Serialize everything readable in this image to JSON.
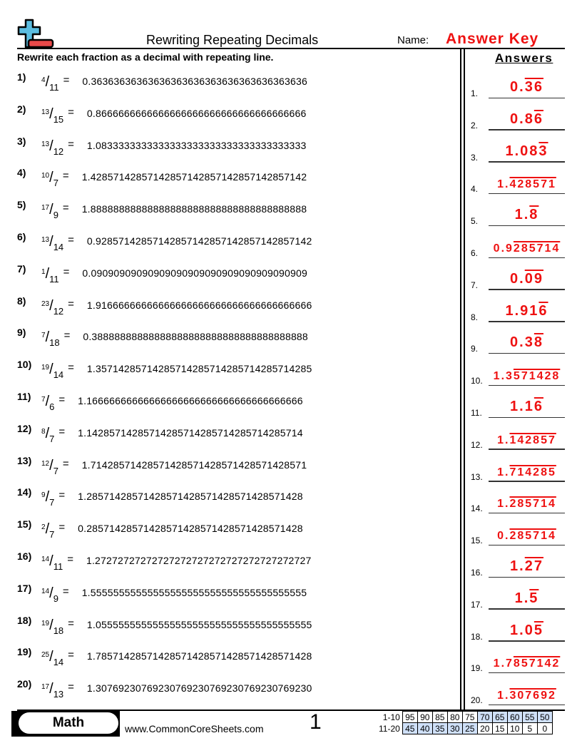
{
  "header": {
    "title": "Rewriting Repeating Decimals",
    "name_label": "Name:",
    "name_value": "Answer Key",
    "instructions": "Rewrite each fraction as a decimal with repeating line.",
    "answers_heading": "Answers"
  },
  "problems": [
    {
      "label": "1)",
      "num": "4",
      "den": "11",
      "decimal": "0.36363636363636363636363636363636363636"
    },
    {
      "label": "2)",
      "num": "13",
      "den": "15",
      "decimal": "0.8666666666666666666666666666666666666"
    },
    {
      "label": "3)",
      "num": "13",
      "den": "12",
      "decimal": "1.0833333333333333333333333333333333333"
    },
    {
      "label": "4)",
      "num": "10",
      "den": "7",
      "decimal": "1.42857142857142857142857142857142857142"
    },
    {
      "label": "5)",
      "num": "17",
      "den": "9",
      "decimal": "1.88888888888888888888888888888888888888"
    },
    {
      "label": "6)",
      "num": "13",
      "den": "14",
      "decimal": "0.92857142857142857142857142857142857142"
    },
    {
      "label": "7)",
      "num": "1",
      "den": "11",
      "decimal": "0.09090909090909090909090909090909090909"
    },
    {
      "label": "8)",
      "num": "23",
      "den": "12",
      "decimal": "1.91666666666666666666666666666666666666"
    },
    {
      "label": "9)",
      "num": "7",
      "den": "18",
      "decimal": "0.38888888888888888888888888888888888888"
    },
    {
      "label": "10)",
      "num": "19",
      "den": "14",
      "decimal": "1.35714285714285714285714285714285714285"
    },
    {
      "label": "11)",
      "num": "7",
      "den": "6",
      "decimal": "1.16666666666666666666666666666666666666"
    },
    {
      "label": "12)",
      "num": "8",
      "den": "7",
      "decimal": "1.14285714285714285714285714285714285714"
    },
    {
      "label": "13)",
      "num": "12",
      "den": "7",
      "decimal": "1.71428571428571428571428571428571428571"
    },
    {
      "label": "14)",
      "num": "9",
      "den": "7",
      "decimal": "1.28571428571428571428571428571428571428"
    },
    {
      "label": "15)",
      "num": "2",
      "den": "7",
      "decimal": "0.28571428571428571428571428571428571428"
    },
    {
      "label": "16)",
      "num": "14",
      "den": "11",
      "decimal": "1.27272727272727272727272727272727272727"
    },
    {
      "label": "17)",
      "num": "14",
      "den": "9",
      "decimal": "1.55555555555555555555555555555555555555"
    },
    {
      "label": "18)",
      "num": "19",
      "den": "18",
      "decimal": "1.05555555555555555555555555555555555555"
    },
    {
      "label": "19)",
      "num": "25",
      "den": "14",
      "decimal": "1.78571428571428571428571428571428571428"
    },
    {
      "label": "20)",
      "num": "17",
      "den": "13",
      "decimal": "1.30769230769230769230769230769230769230"
    }
  ],
  "answers": [
    {
      "label": "1.",
      "fixed": "0.",
      "repeat": "36"
    },
    {
      "label": "2.",
      "fixed": "0.8",
      "repeat": "6"
    },
    {
      "label": "3.",
      "fixed": "1.08",
      "repeat": "3"
    },
    {
      "label": "4.",
      "fixed": "1.",
      "repeat": "428571"
    },
    {
      "label": "5.",
      "fixed": "1.",
      "repeat": "8"
    },
    {
      "label": "6.",
      "fixed": "0.9",
      "repeat": "285714"
    },
    {
      "label": "7.",
      "fixed": "0.",
      "repeat": "09"
    },
    {
      "label": "8.",
      "fixed": "1.91",
      "repeat": "6"
    },
    {
      "label": "9.",
      "fixed": "0.3",
      "repeat": "8"
    },
    {
      "label": "10.",
      "fixed": "1.3",
      "repeat": "571428"
    },
    {
      "label": "11.",
      "fixed": "1.1",
      "repeat": "6"
    },
    {
      "label": "12.",
      "fixed": "1.",
      "repeat": "142857"
    },
    {
      "label": "13.",
      "fixed": "1.",
      "repeat": "714285"
    },
    {
      "label": "14.",
      "fixed": "1.",
      "repeat": "285714"
    },
    {
      "label": "15.",
      "fixed": "0.",
      "repeat": "285714"
    },
    {
      "label": "16.",
      "fixed": "1.",
      "repeat": "27"
    },
    {
      "label": "17.",
      "fixed": "1.",
      "repeat": "5"
    },
    {
      "label": "18.",
      "fixed": "1.0",
      "repeat": "5"
    },
    {
      "label": "19.",
      "fixed": "1.7",
      "repeat": "857142"
    },
    {
      "label": "20.",
      "fixed": "1.",
      "repeat": "307692"
    }
  ],
  "footer": {
    "subject": "Math",
    "website": "www.CommonCoreSheets.com",
    "page_number": "1",
    "score_rows": [
      {
        "label": "1-10",
        "values": [
          "95",
          "90",
          "85",
          "80",
          "75",
          "70",
          "65",
          "60",
          "55",
          "50"
        ],
        "highlighted": [
          false,
          false,
          false,
          false,
          false,
          true,
          true,
          true,
          true,
          true
        ]
      },
      {
        "label": "11-20",
        "values": [
          "45",
          "40",
          "35",
          "30",
          "25",
          "20",
          "15",
          "10",
          "5",
          "0"
        ],
        "highlighted": [
          true,
          true,
          true,
          true,
          true,
          false,
          false,
          false,
          false,
          false
        ]
      }
    ]
  },
  "colors": {
    "answer": "#ee1111",
    "logo_plus": "#5bbde0",
    "logo_minus": "#e84848",
    "score_highlight": "#cfe0f8"
  }
}
